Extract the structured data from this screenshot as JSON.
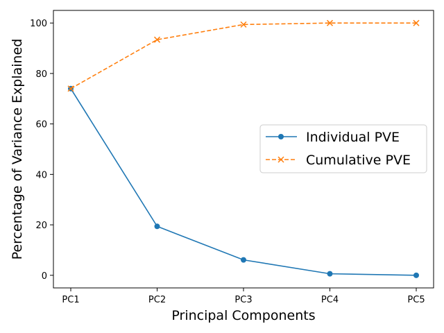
{
  "chart_data": {
    "type": "line",
    "categories": [
      "PC1",
      "PC2",
      "PC3",
      "PC4",
      "PC5"
    ],
    "series": [
      {
        "name": "Individual PVE",
        "values": [
          74.0,
          19.4,
          6.1,
          0.6,
          0.0
        ],
        "color": "#1f77b4",
        "linestyle": "solid",
        "marker": "circle"
      },
      {
        "name": "Cumulative PVE",
        "values": [
          74.0,
          93.4,
          99.4,
          100.0,
          100.0
        ],
        "color": "#ff7f0e",
        "linestyle": "dashed",
        "marker": "x"
      }
    ],
    "xlabel": "Principal Components",
    "ylabel": "Percentage of Variance Explained",
    "ylim": [
      -5,
      105
    ],
    "yticks": [
      0,
      20,
      40,
      60,
      80,
      100
    ],
    "grid": false,
    "legend_position": "center-right"
  }
}
